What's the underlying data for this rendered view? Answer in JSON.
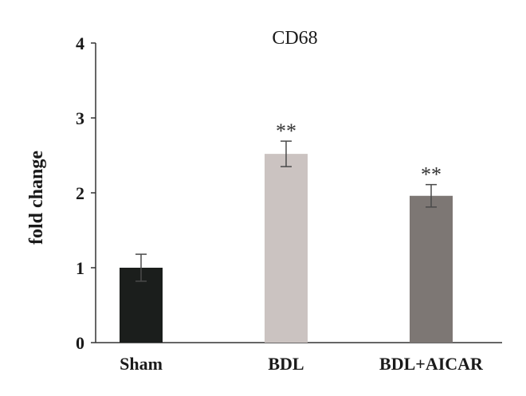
{
  "chart_data": {
    "type": "bar",
    "title": "CD68",
    "xlabel": "",
    "ylabel": "fold change",
    "ylim": [
      0,
      4
    ],
    "yticks": [
      0,
      1,
      2,
      3,
      4
    ],
    "categories": [
      "Sham",
      "BDL",
      "BDL+AICAR"
    ],
    "values": [
      1.0,
      2.52,
      1.96
    ],
    "errors": [
      0.18,
      0.17,
      0.15
    ],
    "significance": [
      "",
      "**",
      "**"
    ],
    "bar_colors": [
      "#1b1e1c",
      "#cbc3c1",
      "#7d7774"
    ],
    "grid": false,
    "legend": "none"
  }
}
